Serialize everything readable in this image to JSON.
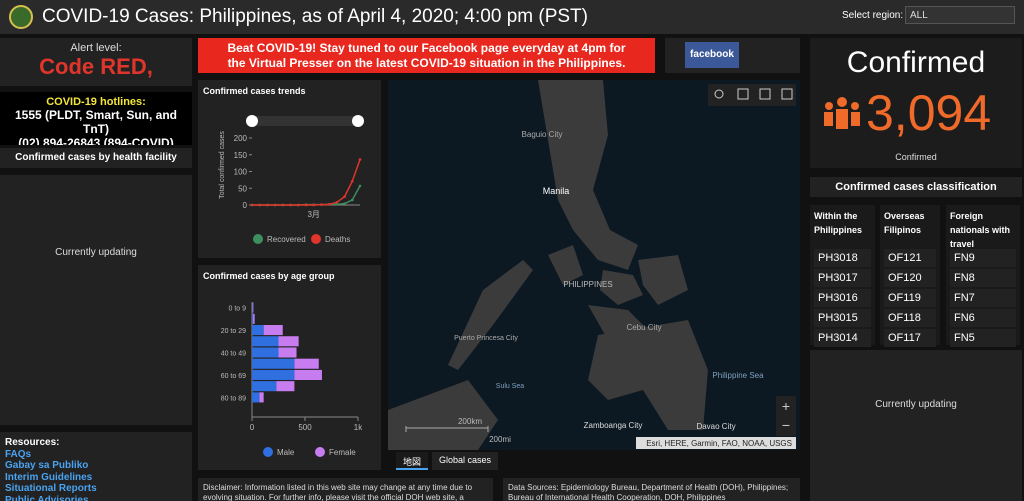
{
  "header": {
    "title": "COVID-19 Cases: Philippines, as of April 4, 2020; 4:00 pm (PST)",
    "region_label": "Select region:",
    "region_value": "ALL"
  },
  "alert": {
    "label": "Alert level:",
    "value": "Code RED,"
  },
  "hotlines": {
    "title": "COVID-19 hotlines:",
    "lines": [
      "1555 (PLDT, Smart, Sun, and TnT)",
      "(02) 894-26843 (894-COVID)"
    ]
  },
  "facility": {
    "title": "Confirmed cases by health facility",
    "status": "Currently updating"
  },
  "resources": {
    "title": "Resources:",
    "links": [
      "FAQs",
      "Gabay sa Publiko",
      "Interim Guidelines",
      "Situational Reports",
      "Public Advisories"
    ]
  },
  "banner": "Beat COVID-19! Stay tuned to our Facebook page everyday at 4pm for the Virtual Presser on the latest COVID-19 situation in the Philippines.",
  "facebook": "facebook",
  "trend_chart": {
    "type": "line",
    "title": "Confirmed cases trends",
    "y_label": "Total confirmed cases",
    "categories": [
      null,
      null,
      null,
      null,
      null,
      null,
      null,
      null,
      "3月",
      null,
      null,
      null,
      null,
      null,
      null
    ],
    "series": [
      {
        "name": "Recovered",
        "color": "#3d8f5f",
        "values": [
          0,
          0,
          0,
          0,
          0,
          0,
          0,
          1,
          1,
          1,
          2,
          2,
          4,
          15,
          57
        ]
      },
      {
        "name": "Deaths",
        "color": "#e0352b",
        "values": [
          0,
          0,
          0,
          0,
          0,
          0,
          0,
          0,
          0,
          1,
          2,
          8,
          25,
          71,
          136
        ]
      }
    ],
    "ylim": [
      0,
      200
    ],
    "yticks": [
      0,
      50,
      100,
      150,
      200
    ]
  },
  "age_chart": {
    "type": "bar",
    "stacked": true,
    "orientation": "horizontal",
    "title": "Confirmed cases by age group",
    "categories": [
      "0 to 9",
      null,
      "20 to 29",
      null,
      "40 to 49",
      null,
      "60 to 69",
      null,
      "80 to 89"
    ],
    "series": [
      {
        "name": "Male",
        "color": "#2f6fe0",
        "values": [
          5,
          10,
          110,
          250,
          250,
          400,
          400,
          230,
          70
        ]
      },
      {
        "name": "Female",
        "color": "#c77cf0",
        "values": [
          8,
          15,
          180,
          190,
          170,
          230,
          260,
          170,
          40
        ]
      }
    ],
    "xlim": [
      0,
      1000
    ],
    "xticks": [
      0,
      500,
      {
        "value": 1000,
        "label": "1k"
      }
    ]
  },
  "map": {
    "labels": [
      "Baguio City",
      "Manila",
      "PHILIPPINES",
      "Puerto Princesa City",
      "Sulu Sea",
      "Cebu City",
      "Philippine Sea",
      "Zamboanga City",
      "Davao City"
    ],
    "scale": [
      "200km",
      "200mi"
    ],
    "attribution": "Esri, HERE, Garmin, FAO, NOAA, USGS",
    "tabs": [
      "地図",
      "Global cases"
    ]
  },
  "disclaimer": "Disclaimer: Information listed in this web site may change at any time due to evolving situation. For further info, please visit the official DOH web site, a",
  "sources": "Data Sources: Epidemiology Bureau, Department of Health (DOH), Philippines; Bureau of International Health Cooperation, DOH, Philippines",
  "confirmed": {
    "title": "Confirmed",
    "value": "3,094",
    "footer": "Confirmed"
  },
  "classification": {
    "title": "Confirmed cases classification",
    "columns": [
      {
        "header": "Within the Philippines",
        "items": [
          "PH3018",
          "PH3017",
          "PH3016",
          "PH3015",
          "PH3014"
        ]
      },
      {
        "header": "Overseas Filipinos",
        "items": [
          "OF121",
          "OF120",
          "OF119",
          "OF118",
          "OF117"
        ]
      },
      {
        "header": "Foreign nationals with travel",
        "items": [
          "FN9",
          "FN8",
          "FN7",
          "FN6",
          "FN5"
        ]
      }
    ]
  },
  "right_status": "Currently updating"
}
